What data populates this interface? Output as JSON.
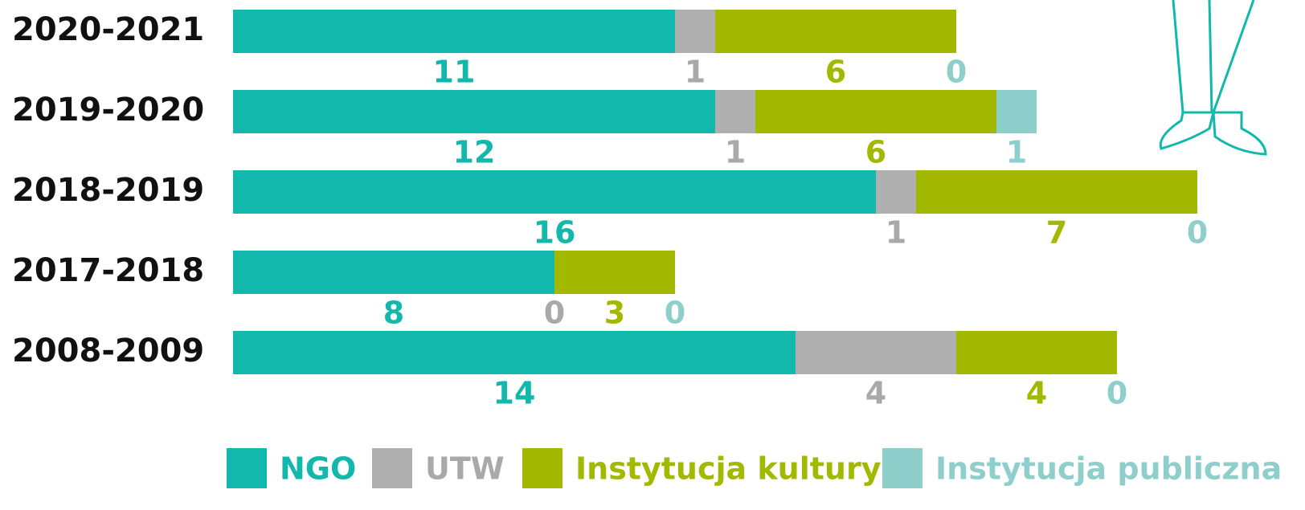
{
  "chart_data": {
    "type": "stacked-bar",
    "categories": [
      "2020-2021",
      "2019-2020",
      "2018-2019",
      "2017-2018",
      "2008-2009"
    ],
    "series": [
      {
        "name": "NGO",
        "color": "#13b8ad",
        "label_color": "#13b8ad",
        "values": [
          11,
          12,
          16,
          8,
          14
        ]
      },
      {
        "name": "UTW",
        "color": "#afafaf",
        "label_color": "#a9a9a9",
        "values": [
          1,
          1,
          1,
          0,
          4
        ]
      },
      {
        "name": "Instytucja kultury",
        "color": "#a3b800",
        "label_color": "#a3b800",
        "values": [
          6,
          6,
          7,
          3,
          4
        ]
      },
      {
        "name": "Instytucja publiczna",
        "color": "#8ecfcb",
        "label_color": "#8ecfcb",
        "values": [
          0,
          1,
          0,
          0,
          0
        ]
      }
    ]
  }
}
